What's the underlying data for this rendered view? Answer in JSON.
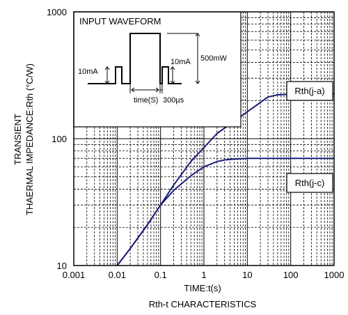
{
  "chart_data": {
    "type": "line",
    "title": "Rth-t CHARACTERISTICS",
    "xlabel": "TIME:t(s)",
    "ylabel_lines": [
      "TRANSIENT",
      "THAERMAL IMPEDANCE:Rth (°C/W)"
    ],
    "xscale": "log",
    "yscale": "log",
    "xlim": [
      0.001,
      1000
    ],
    "ylim": [
      10,
      1000
    ],
    "grid": true,
    "x_ticks": [
      {
        "value": 0.001,
        "label": "0.001"
      },
      {
        "value": 0.01,
        "label": "0.01"
      },
      {
        "value": 0.1,
        "label": "0.1"
      },
      {
        "value": 1,
        "label": "1"
      },
      {
        "value": 10,
        "label": "10"
      },
      {
        "value": 100,
        "label": "100"
      },
      {
        "value": 1000,
        "label": "1000"
      }
    ],
    "y_ticks": [
      {
        "value": 10,
        "label": "10"
      },
      {
        "value": 100,
        "label": "100"
      },
      {
        "value": 1000,
        "label": "1000"
      }
    ],
    "series_color": "#1c1c7a",
    "series": [
      {
        "name": "Rth(j-a)",
        "x": [
          0.01,
          0.02,
          0.05,
          0.1,
          0.2,
          0.5,
          1,
          2,
          5,
          10,
          20,
          30,
          50,
          100,
          200,
          500,
          1000
        ],
        "y": [
          10,
          13.6,
          21,
          30,
          43,
          66,
          85,
          110,
          137,
          163,
          193,
          213,
          222,
          224,
          225,
          225,
          225
        ]
      },
      {
        "name": "Rth(j-c)",
        "x": [
          0.01,
          0.02,
          0.05,
          0.1,
          0.2,
          0.5,
          1,
          2,
          3,
          5,
          10,
          20,
          50,
          100,
          1000
        ],
        "y": [
          10,
          13.6,
          21,
          30,
          39,
          51,
          60,
          66,
          68,
          69,
          70,
          70,
          70,
          70,
          70
        ]
      }
    ],
    "annotations": {
      "inset_title": "INPUT WAVEFORM",
      "pulse_left_label": "10mA",
      "pulse_right_label": "10mA",
      "pulse_height_label": "500mW",
      "time_label": "time(S)",
      "gap_label": "300µs"
    }
  }
}
